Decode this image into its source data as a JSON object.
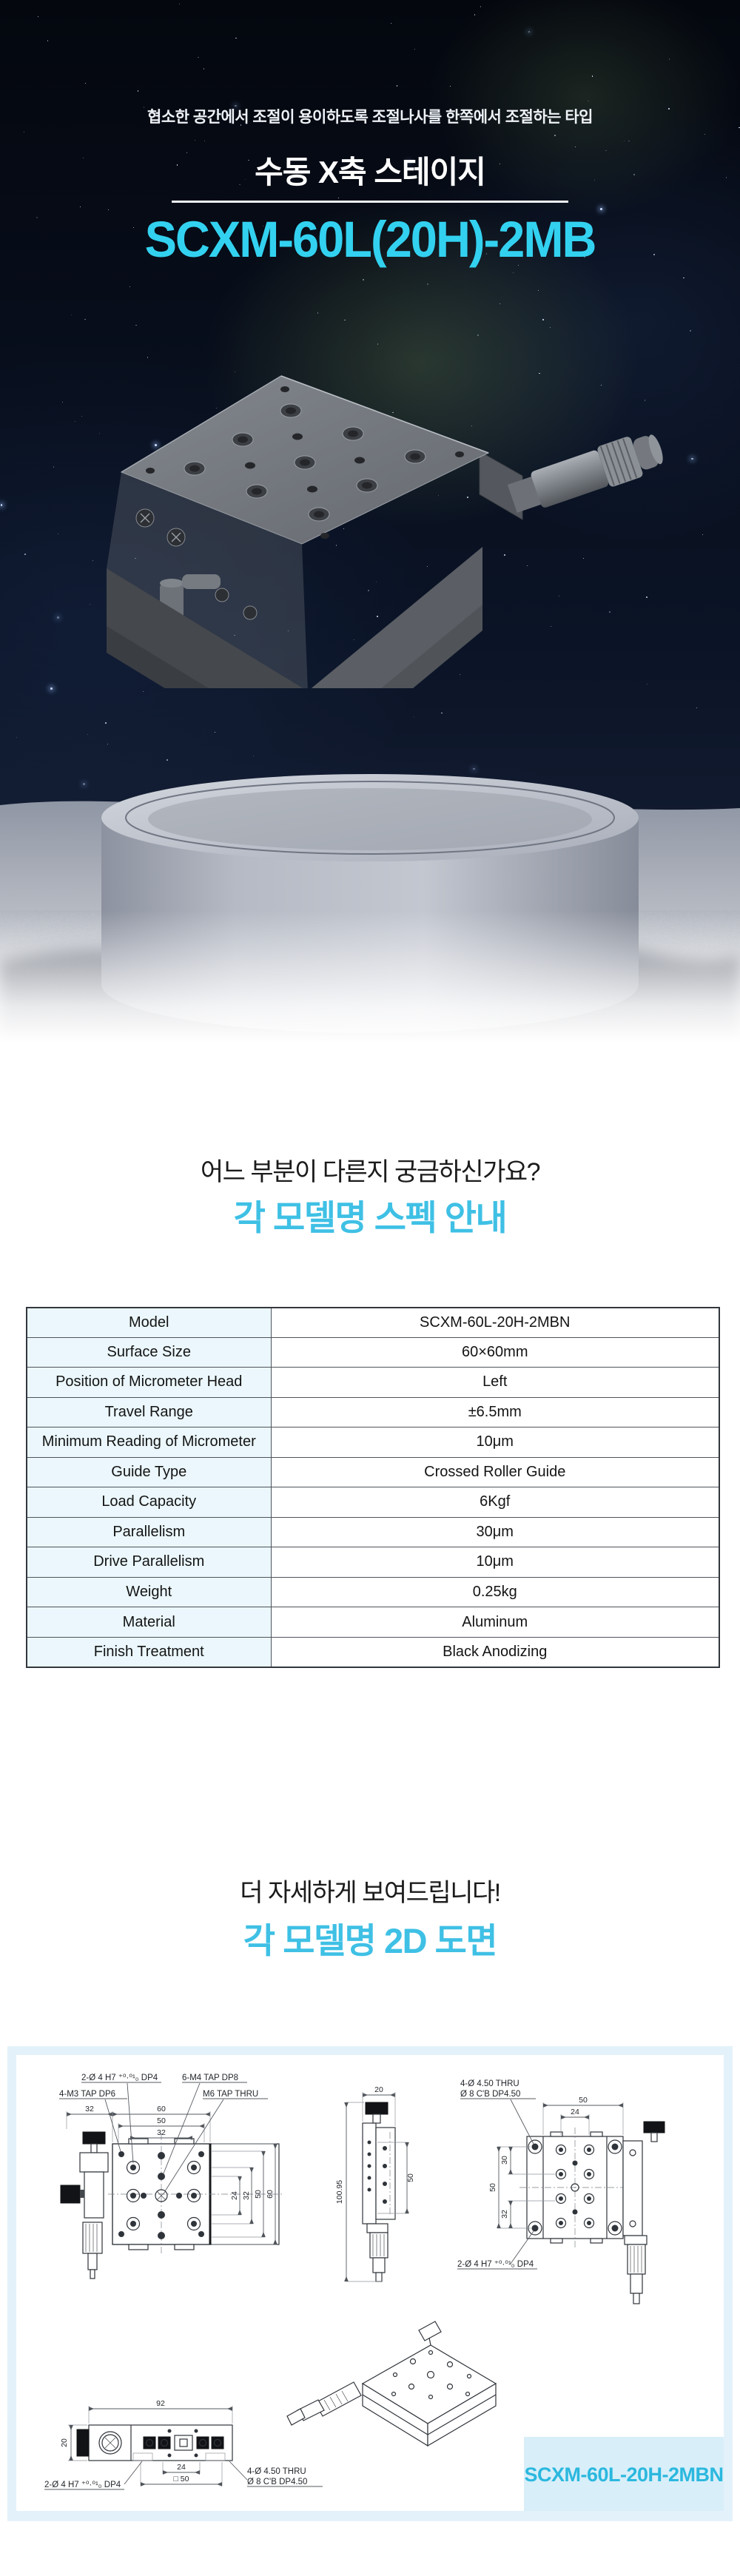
{
  "hero": {
    "tagline": "협소한 공간에서 조절이 용이하도록 조절나사를 한쪽에서 조절하는 타입",
    "category": "수동 X축 스테이지",
    "model_title": "SCXM-60L(20H)-2MB"
  },
  "spec": {
    "question": "어느 부분이 다른지 궁금하신가요?",
    "heading": "각 모델명 스펙 안내"
  },
  "spec_table": {
    "header": {
      "label": "Model",
      "value": "SCXM-60L-20H-2MBN"
    },
    "rows": [
      [
        "Surface Size",
        "60×60mm"
      ],
      [
        "Position of Micrometer Head",
        "Left"
      ],
      [
        "Travel Range",
        "±6.5mm"
      ],
      [
        "Minimum Reading of Micrometer",
        "10μm"
      ],
      [
        "Guide Type",
        "Crossed Roller Guide"
      ],
      [
        "Load Capacity",
        "6Kgf"
      ],
      [
        "Parallelism",
        "30μm"
      ],
      [
        "Drive Parallelism",
        "10μm"
      ],
      [
        "Weight",
        "0.25kg"
      ],
      [
        "Material",
        "Aluminum"
      ],
      [
        "Finish Treatment",
        "Black Anodizing"
      ]
    ]
  },
  "d2": {
    "lead": "더 자세하게 보여드립니다!",
    "heading": "각 모델명 2D 도면",
    "model_label": "SCXM-60L-20H-2MBN",
    "ann": {
      "pin": "2-Ø 4 H7 ⁺⁰·⁰¹₀ DP4",
      "m3": "4-M3 TAP DP6",
      "m4": "6-M4 TAP DP8",
      "m6": "M6 TAP THRU",
      "thru": "4-Ø 4.50 THRU",
      "cbore": "Ø 8 C'B DP4.50"
    },
    "dims": {
      "d20": "20",
      "d24": "24",
      "d30": "30",
      "d32": "32",
      "d50": "50",
      "d60": "60",
      "d92": "92",
      "d100_95": "100.95",
      "sq50": "□ 50"
    }
  },
  "colors": {
    "title_cyan": "#33d1f0",
    "heading_cyan": "#3fc0e5",
    "label_cyan": "#2bb8de",
    "table_header_bg": "#92dcef",
    "table_label_bg": "#ebf7fc",
    "panel_bg": "#e3f2fa",
    "label_box_bg": "#d8eef9"
  }
}
